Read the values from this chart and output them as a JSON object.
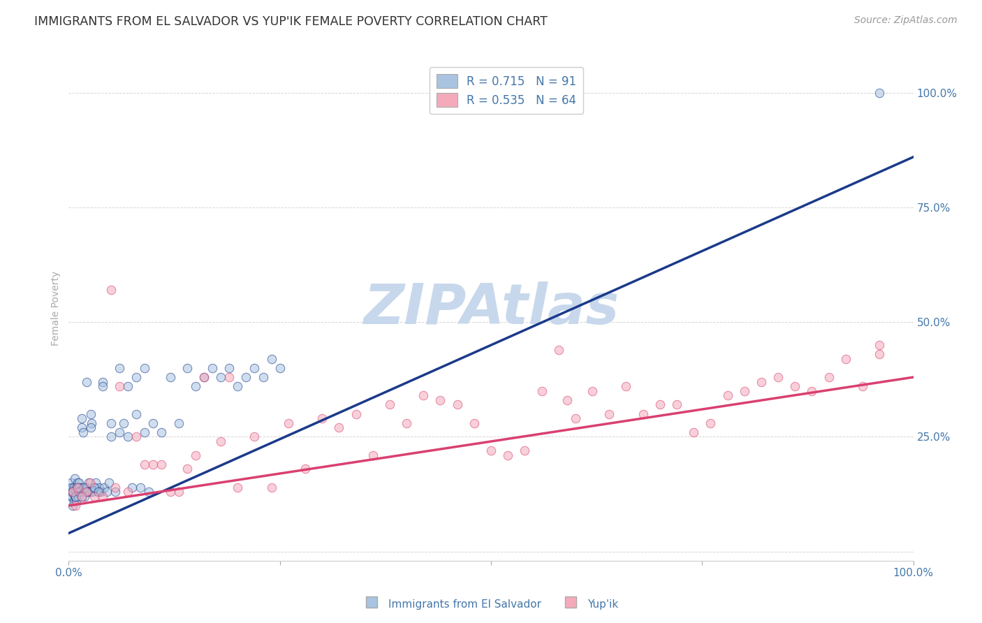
{
  "title": "IMMIGRANTS FROM EL SALVADOR VS YUP'IK FEMALE POVERTY CORRELATION CHART",
  "source": "Source: ZipAtlas.com",
  "ylabel": "Female Poverty",
  "watermark": "ZIPAtlas",
  "blue_R": 0.715,
  "blue_N": 91,
  "pink_R": 0.535,
  "pink_N": 64,
  "blue_color": "#A8C4E0",
  "pink_color": "#F4AABB",
  "blue_line_color": "#1A3A8A",
  "pink_line_color": "#D94070",
  "background_color": "#FFFFFF",
  "grid_color": "#CCCCCC",
  "title_color": "#333333",
  "axis_label_color": "#4477AA",
  "watermark_color": "#C8D8EC",
  "xlim": [
    0.0,
    1.0
  ],
  "ylim": [
    -0.02,
    1.08
  ],
  "blue_scatter_x": [
    0.001,
    0.002,
    0.002,
    0.003,
    0.003,
    0.004,
    0.004,
    0.005,
    0.005,
    0.006,
    0.006,
    0.007,
    0.007,
    0.008,
    0.008,
    0.009,
    0.009,
    0.01,
    0.01,
    0.011,
    0.011,
    0.012,
    0.013,
    0.014,
    0.015,
    0.015,
    0.016,
    0.017,
    0.018,
    0.019,
    0.02,
    0.021,
    0.022,
    0.023,
    0.024,
    0.025,
    0.026,
    0.027,
    0.028,
    0.03,
    0.032,
    0.034,
    0.036,
    0.038,
    0.04,
    0.042,
    0.045,
    0.048,
    0.05,
    0.055,
    0.06,
    0.065,
    0.07,
    0.075,
    0.08,
    0.085,
    0.09,
    0.095,
    0.1,
    0.11,
    0.12,
    0.13,
    0.14,
    0.15,
    0.16,
    0.17,
    0.18,
    0.19,
    0.2,
    0.21,
    0.22,
    0.23,
    0.24,
    0.25,
    0.005,
    0.008,
    0.01,
    0.012,
    0.015,
    0.018,
    0.022,
    0.026,
    0.03,
    0.035,
    0.04,
    0.05,
    0.06,
    0.07,
    0.08,
    0.09,
    0.96
  ],
  "blue_scatter_y": [
    0.13,
    0.14,
    0.12,
    0.13,
    0.15,
    0.12,
    0.14,
    0.1,
    0.13,
    0.11,
    0.14,
    0.12,
    0.16,
    0.13,
    0.12,
    0.14,
    0.11,
    0.15,
    0.13,
    0.14,
    0.12,
    0.15,
    0.14,
    0.13,
    0.27,
    0.29,
    0.14,
    0.26,
    0.13,
    0.12,
    0.14,
    0.37,
    0.14,
    0.13,
    0.15,
    0.13,
    0.3,
    0.28,
    0.13,
    0.14,
    0.15,
    0.13,
    0.14,
    0.13,
    0.37,
    0.14,
    0.13,
    0.15,
    0.28,
    0.13,
    0.26,
    0.28,
    0.25,
    0.14,
    0.3,
    0.14,
    0.26,
    0.13,
    0.28,
    0.26,
    0.38,
    0.28,
    0.4,
    0.36,
    0.38,
    0.4,
    0.38,
    0.4,
    0.36,
    0.38,
    0.4,
    0.38,
    0.42,
    0.4,
    0.13,
    0.12,
    0.14,
    0.13,
    0.12,
    0.14,
    0.13,
    0.27,
    0.14,
    0.13,
    0.36,
    0.25,
    0.4,
    0.36,
    0.38,
    0.4,
    1.0
  ],
  "pink_scatter_x": [
    0.005,
    0.01,
    0.02,
    0.03,
    0.05,
    0.07,
    0.1,
    0.13,
    0.16,
    0.2,
    0.24,
    0.28,
    0.32,
    0.36,
    0.4,
    0.44,
    0.48,
    0.52,
    0.56,
    0.6,
    0.64,
    0.68,
    0.72,
    0.76,
    0.8,
    0.84,
    0.88,
    0.92,
    0.96,
    0.015,
    0.04,
    0.06,
    0.09,
    0.12,
    0.15,
    0.18,
    0.22,
    0.26,
    0.3,
    0.34,
    0.38,
    0.42,
    0.46,
    0.5,
    0.54,
    0.58,
    0.62,
    0.66,
    0.7,
    0.74,
    0.78,
    0.82,
    0.86,
    0.9,
    0.94,
    0.008,
    0.025,
    0.055,
    0.08,
    0.11,
    0.14,
    0.19,
    0.59,
    0.96
  ],
  "pink_scatter_y": [
    0.13,
    0.14,
    0.13,
    0.12,
    0.57,
    0.13,
    0.19,
    0.13,
    0.38,
    0.14,
    0.14,
    0.18,
    0.27,
    0.21,
    0.28,
    0.33,
    0.28,
    0.21,
    0.35,
    0.29,
    0.3,
    0.3,
    0.32,
    0.28,
    0.35,
    0.38,
    0.35,
    0.42,
    0.43,
    0.12,
    0.12,
    0.36,
    0.19,
    0.13,
    0.21,
    0.24,
    0.25,
    0.28,
    0.29,
    0.3,
    0.32,
    0.34,
    0.32,
    0.22,
    0.22,
    0.44,
    0.35,
    0.36,
    0.32,
    0.26,
    0.34,
    0.37,
    0.36,
    0.38,
    0.36,
    0.1,
    0.15,
    0.14,
    0.25,
    0.19,
    0.18,
    0.38,
    0.33,
    0.45
  ],
  "blue_line_x": [
    0.0,
    1.0
  ],
  "blue_line_y": [
    0.04,
    0.86
  ],
  "pink_line_x": [
    0.0,
    1.0
  ],
  "pink_line_y": [
    0.1,
    0.38
  ],
  "xtick_positions": [
    0.0,
    0.25,
    0.5,
    0.75,
    1.0
  ],
  "xtick_labels": [
    "0.0%",
    "",
    "",
    "",
    "100.0%"
  ],
  "ytick_positions": [
    0.0,
    0.25,
    0.5,
    0.75,
    1.0
  ],
  "ytick_labels": [
    "",
    "25.0%",
    "50.0%",
    "75.0%",
    "100.0%"
  ],
  "legend_blue_label": "R = 0.715   N = 91",
  "legend_pink_label": "R = 0.535   N = 64",
  "legend_blue_entry": "Immigrants from El Salvador",
  "legend_pink_entry": "Yup'ik",
  "marker_size": 80,
  "marker_alpha": 0.55,
  "line_width": 2.5
}
